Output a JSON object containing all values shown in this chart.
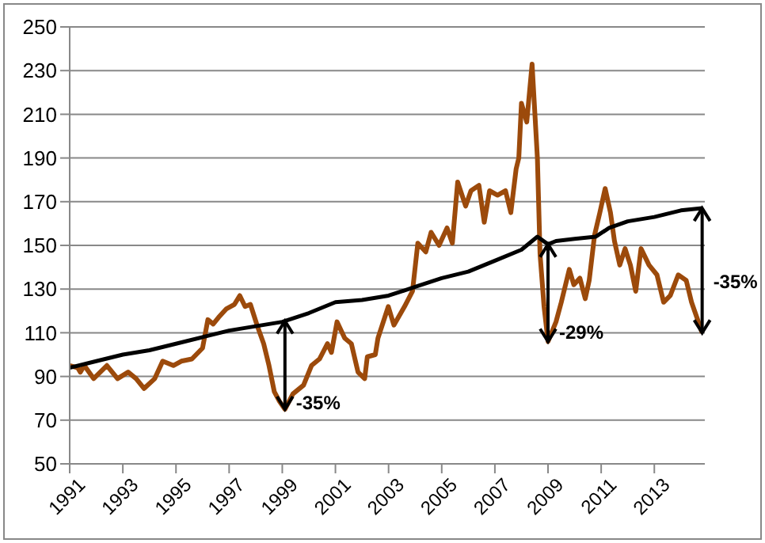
{
  "chart_data": {
    "type": "line",
    "xlim": [
      1991,
      2014.9
    ],
    "xticks": [
      1991,
      1993,
      1995,
      1997,
      1999,
      2001,
      2003,
      2005,
      2007,
      2009,
      2011,
      2013
    ],
    "ylim": [
      50,
      250
    ],
    "yticks": [
      50,
      70,
      90,
      110,
      130,
      150,
      170,
      190,
      210,
      230,
      250
    ],
    "grid": "y",
    "marker": "none",
    "line_style": "solid",
    "series": [
      {
        "color": "#9c4a0b",
        "x": [
          1991.0,
          1991.3,
          1991.4,
          1991.55,
          1991.9,
          1992.4,
          1992.8,
          1993.2,
          1993.5,
          1993.8,
          1994.2,
          1994.5,
          1994.9,
          1995.2,
          1995.6,
          1996.0,
          1996.2,
          1996.4,
          1996.6,
          1996.9,
          1997.2,
          1997.4,
          1997.6,
          1997.8,
          1998.05,
          1998.3,
          1998.5,
          1998.7,
          1998.9,
          1999.1,
          1999.4,
          1999.8,
          2000.1,
          2000.4,
          2000.7,
          2000.85,
          2001.06,
          2001.35,
          2001.6,
          2001.85,
          2002.1,
          2002.2,
          2002.5,
          2002.6,
          2002.99,
          2003.2,
          2003.6,
          2003.9,
          2004.1,
          2004.4,
          2004.6,
          2004.9,
          2005.2,
          2005.4,
          2005.6,
          2005.9,
          2006.1,
          2006.4,
          2006.6,
          2006.8,
          2007.1,
          2007.4,
          2007.6,
          2007.8,
          2007.9,
          2008.0,
          2008.2,
          2008.4,
          2008.6,
          2008.7,
          2008.85,
          2009.0,
          2009.3,
          2009.5,
          2009.8,
          2009.97,
          2010.2,
          2010.4,
          2010.55,
          2010.75,
          2010.95,
          2011.15,
          2011.35,
          2011.5,
          2011.7,
          2011.9,
          2012.1,
          2012.3,
          2012.5,
          2012.8,
          2013.1,
          2013.35,
          2013.6,
          2013.9,
          2014.2,
          2014.4,
          2014.6,
          2014.8
        ],
        "values": [
          95,
          94,
          92,
          95,
          89,
          95,
          89,
          92,
          89,
          84.5,
          89,
          97,
          95,
          97,
          98,
          103,
          116,
          114,
          117,
          121,
          123,
          127,
          122,
          123,
          113.5,
          105,
          95,
          83,
          78.5,
          75,
          82,
          86,
          95,
          98,
          105,
          101,
          115,
          107.5,
          105,
          92,
          89,
          99,
          100,
          107.5,
          122,
          113.5,
          122,
          129,
          151,
          147,
          156,
          150,
          158,
          151,
          179,
          168,
          175,
          177.5,
          160.6,
          175,
          173,
          175,
          165,
          185,
          190,
          215,
          206.5,
          233,
          190,
          146,
          122,
          106,
          115,
          124,
          139,
          132,
          135,
          125.6,
          134,
          154.6,
          165,
          176,
          165,
          152,
          141,
          148.5,
          141,
          129,
          148.5,
          141,
          136.5,
          124,
          127,
          136.5,
          134,
          124,
          117,
          110
        ]
      },
      {
        "color": "#000000",
        "x": [
          1991,
          1992,
          1993,
          1994,
          1995,
          1996,
          1997,
          1998,
          1999,
          2000,
          2001,
          2002,
          2003,
          2004,
          2005,
          2006,
          2007,
          2008,
          2008.6,
          2009.0,
          2009.3,
          2010,
          2010.8,
          2011.3,
          2012,
          2013,
          2014,
          2014.8
        ],
        "values": [
          94,
          97,
          100,
          102,
          105,
          108,
          111,
          113,
          115,
          119,
          124,
          125,
          127,
          131,
          135,
          138,
          143,
          148,
          154,
          150.5,
          152,
          153,
          154,
          158,
          161,
          163,
          166,
          167
        ]
      }
    ],
    "annotations": [
      {
        "text": "-35%",
        "x": 1999.1,
        "y": 75
      },
      {
        "text": "-29%",
        "x": 2009.0,
        "y": 106
      },
      {
        "text": "-35%",
        "x": 2014.8,
        "y": 110
      }
    ]
  }
}
